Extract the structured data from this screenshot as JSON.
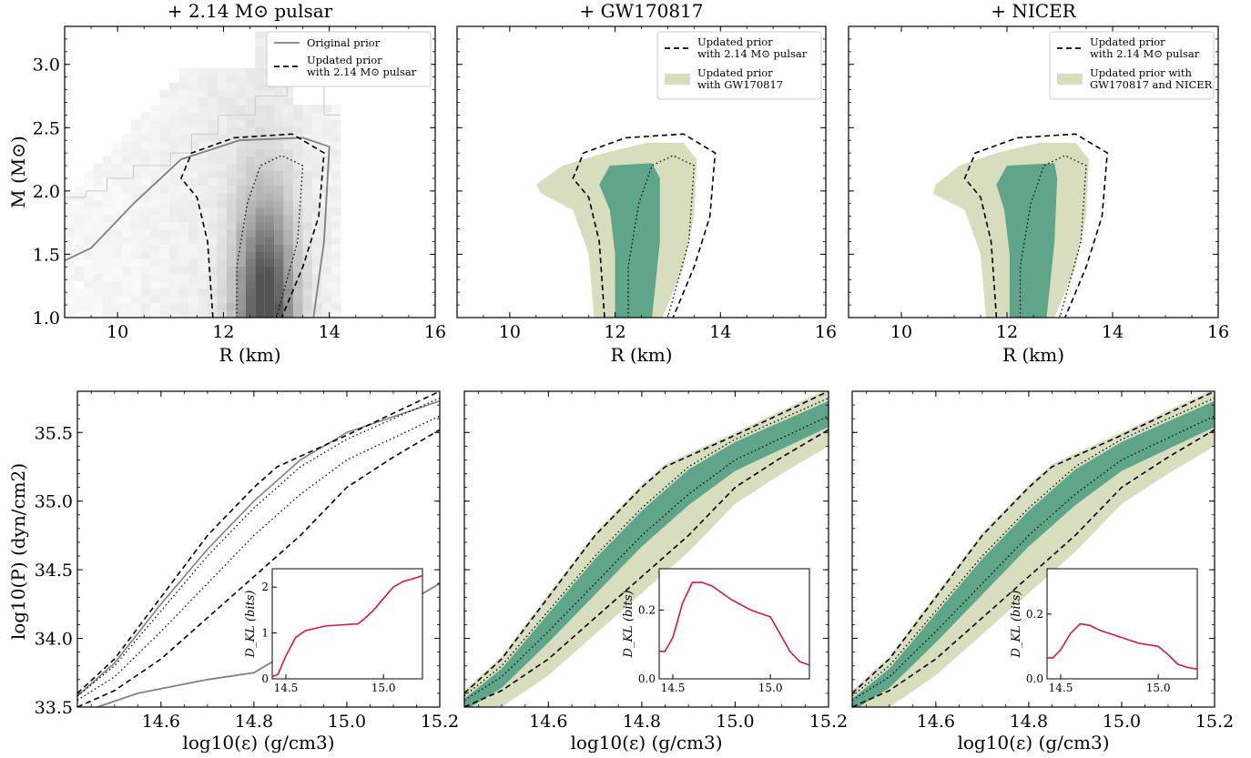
{
  "colors": {
    "broad": "#d7ddbd",
    "narrow": "#5fa58a",
    "prior_line": "#808080",
    "kl_line": "#d6163f",
    "heat_dark": "#3a3a3a"
  },
  "chart_data": [
    {
      "id": "mr-pulsar",
      "type": "contour",
      "title": "+ 2.14 M⊙ pulsar",
      "xlabel": "R (km)",
      "ylabel": "M (M⊙)",
      "xlim": [
        9,
        16
      ],
      "ylim": [
        1.0,
        3.3
      ],
      "xticks": [
        "10",
        "12",
        "14",
        "16"
      ],
      "yticks": [
        "1.0",
        "1.5",
        "2.0",
        "2.5",
        "3.0"
      ],
      "legend": [
        "Original prior",
        "Updated prior",
        "with 2.14 M⊙ pulsar"
      ],
      "prior_density": "grayscale 2D histogram of prior samples, densest near R≈12.5–13 km, M≈1.0–1.6",
      "prior_contour_90": [
        [
          9.0,
          1.45
        ],
        [
          9.5,
          1.55
        ],
        [
          10.3,
          1.9
        ],
        [
          11.2,
          2.25
        ],
        [
          12.3,
          2.4
        ],
        [
          13.5,
          2.42
        ],
        [
          14.0,
          2.35
        ],
        [
          13.9,
          1.6
        ],
        [
          13.7,
          1.0
        ]
      ],
      "updated_90": [
        [
          11.8,
          1.0
        ],
        [
          11.7,
          1.6
        ],
        [
          11.5,
          1.95
        ],
        [
          11.2,
          2.1
        ],
        [
          11.4,
          2.3
        ],
        [
          12.2,
          2.42
        ],
        [
          13.3,
          2.45
        ],
        [
          13.9,
          2.3
        ],
        [
          13.8,
          1.8
        ],
        [
          13.5,
          1.4
        ],
        [
          13.1,
          1.0
        ]
      ],
      "updated_50": [
        [
          12.25,
          1.0
        ],
        [
          12.25,
          1.4
        ],
        [
          12.45,
          1.9
        ],
        [
          12.7,
          2.2
        ],
        [
          13.1,
          2.28
        ],
        [
          13.5,
          2.2
        ],
        [
          13.4,
          1.6
        ],
        [
          13.0,
          1.0
        ]
      ]
    },
    {
      "id": "mr-gw",
      "type": "contour",
      "title": "+ GW170817",
      "xlabel": "R (km)",
      "xlim": [
        9,
        16
      ],
      "ylim": [
        1.0,
        3.3
      ],
      "xticks": [
        "10",
        "12",
        "14",
        "16"
      ],
      "legend": [
        "Updated prior",
        "with 2.14 M⊙ pulsar",
        "Updated prior",
        "with GW170817"
      ],
      "band_90": [
        [
          11.6,
          1.0
        ],
        [
          11.5,
          1.5
        ],
        [
          11.2,
          1.85
        ],
        [
          10.6,
          1.98
        ],
        [
          10.5,
          2.05
        ],
        [
          11.0,
          2.2
        ],
        [
          11.8,
          2.3
        ],
        [
          12.6,
          2.38
        ],
        [
          13.3,
          2.38
        ],
        [
          13.55,
          2.25
        ],
        [
          13.5,
          1.8
        ],
        [
          13.3,
          1.4
        ],
        [
          12.9,
          1.0
        ]
      ],
      "band_50": [
        [
          12.0,
          1.0
        ],
        [
          12.0,
          1.5
        ],
        [
          11.9,
          1.85
        ],
        [
          11.7,
          2.05
        ],
        [
          11.9,
          2.2
        ],
        [
          12.7,
          2.22
        ],
        [
          12.85,
          2.1
        ],
        [
          12.85,
          1.6
        ],
        [
          12.7,
          1.0
        ]
      ]
    },
    {
      "id": "mr-nicer",
      "type": "contour",
      "title": "+ NICER",
      "xlabel": "R (km)",
      "xlim": [
        9,
        16
      ],
      "ylim": [
        1.0,
        3.3
      ],
      "xticks": [
        "10",
        "12",
        "14",
        "16"
      ],
      "legend": [
        "Updated prior",
        "with 2.14 M⊙ pulsar",
        "Updated prior with",
        "GW170817 and NICER"
      ],
      "band_90": [
        [
          11.6,
          1.0
        ],
        [
          11.5,
          1.5
        ],
        [
          11.2,
          1.85
        ],
        [
          10.6,
          1.98
        ],
        [
          10.65,
          2.05
        ],
        [
          11.1,
          2.2
        ],
        [
          11.8,
          2.3
        ],
        [
          12.6,
          2.38
        ],
        [
          13.3,
          2.38
        ],
        [
          13.55,
          2.25
        ],
        [
          13.5,
          1.8
        ],
        [
          13.3,
          1.4
        ],
        [
          12.9,
          1.0
        ]
      ],
      "band_50": [
        [
          12.05,
          1.0
        ],
        [
          12.05,
          1.5
        ],
        [
          11.95,
          1.85
        ],
        [
          11.8,
          2.05
        ],
        [
          12.0,
          2.2
        ],
        [
          12.9,
          2.22
        ],
        [
          12.95,
          2.1
        ],
        [
          12.9,
          1.6
        ],
        [
          12.75,
          1.0
        ]
      ]
    },
    {
      "id": "eos-pulsar",
      "type": "line",
      "xlabel": "log10(ε) (g/cm3)",
      "ylabel": "log10(P) (dyn/cm2)",
      "xlim": [
        14.42,
        15.2
      ],
      "ylim": [
        33.5,
        35.8
      ],
      "xticks": [
        "14.6",
        "14.8",
        "15.0",
        "15.2"
      ],
      "yticks": [
        "33.5",
        "34.0",
        "34.5",
        "35.0",
        "35.5"
      ],
      "prior_line": [
        [
          14.42,
          33.45
        ],
        [
          14.55,
          33.6
        ],
        [
          14.7,
          33.7
        ],
        [
          14.8,
          33.75
        ],
        [
          14.9,
          33.95
        ],
        [
          15.1,
          34.2
        ],
        [
          15.2,
          34.4
        ]
      ],
      "upper_dashed": [
        [
          14.42,
          33.6
        ],
        [
          14.5,
          33.85
        ],
        [
          14.6,
          34.3
        ],
        [
          14.7,
          34.75
        ],
        [
          14.8,
          35.1
        ],
        [
          14.85,
          35.25
        ],
        [
          15.0,
          35.48
        ],
        [
          15.2,
          35.8
        ]
      ],
      "lower_dashed": [
        [
          14.42,
          33.5
        ],
        [
          14.5,
          33.62
        ],
        [
          14.6,
          33.85
        ],
        [
          14.7,
          34.15
        ],
        [
          14.8,
          34.45
        ],
        [
          14.9,
          34.75
        ],
        [
          15.0,
          35.1
        ],
        [
          15.1,
          35.32
        ],
        [
          15.2,
          35.52
        ]
      ],
      "upper_dotted": [
        [
          14.42,
          33.58
        ],
        [
          14.5,
          33.8
        ],
        [
          14.6,
          34.2
        ],
        [
          14.7,
          34.6
        ],
        [
          14.8,
          34.95
        ],
        [
          14.9,
          35.25
        ],
        [
          15.0,
          35.45
        ],
        [
          15.2,
          35.75
        ]
      ],
      "lower_dotted": [
        [
          14.42,
          33.55
        ],
        [
          14.5,
          33.72
        ],
        [
          14.6,
          34.05
        ],
        [
          14.7,
          34.4
        ],
        [
          14.8,
          34.75
        ],
        [
          14.9,
          35.05
        ],
        [
          15.0,
          35.3
        ],
        [
          15.2,
          35.62
        ]
      ],
      "solid_gray": [
        [
          14.42,
          33.58
        ],
        [
          14.5,
          33.82
        ],
        [
          14.6,
          34.25
        ],
        [
          14.7,
          34.65
        ],
        [
          14.8,
          35.0
        ],
        [
          14.9,
          35.3
        ],
        [
          15.0,
          35.5
        ],
        [
          15.2,
          35.73
        ]
      ],
      "inset": {
        "ylabel": "D_KL (bits)",
        "xticks": [
          "14.5",
          "15.0"
        ],
        "yticks": [
          "0",
          "1",
          "2"
        ],
        "ylim": [
          0,
          2.4
        ],
        "xlim": [
          14.43,
          15.2
        ],
        "x": [
          14.43,
          14.46,
          14.5,
          14.55,
          14.6,
          14.7,
          14.8,
          14.87,
          14.9,
          14.95,
          15.0,
          15.05,
          15.1,
          15.15,
          15.2
        ],
        "y": [
          0.05,
          0.1,
          0.5,
          0.9,
          1.05,
          1.15,
          1.18,
          1.2,
          1.3,
          1.5,
          1.75,
          2.0,
          2.12,
          2.18,
          2.25
        ]
      }
    },
    {
      "id": "eos-gw",
      "type": "band",
      "xlabel": "log10(ε) (g/cm3)",
      "xlim": [
        14.42,
        15.2
      ],
      "ylim": [
        33.5,
        35.8
      ],
      "xticks": [
        "14.6",
        "14.8",
        "15.0",
        "15.2"
      ],
      "inset": {
        "ylabel": "D_KL (bits)",
        "xticks": [
          "14.5",
          "15.0"
        ],
        "yticks": [
          "0.0",
          "0.2"
        ],
        "ylim": [
          0,
          0.32
        ],
        "xlim": [
          14.43,
          15.2
        ],
        "x": [
          14.43,
          14.46,
          14.5,
          14.55,
          14.6,
          14.65,
          14.7,
          14.8,
          14.9,
          14.95,
          15.0,
          15.05,
          15.1,
          15.15,
          15.2
        ],
        "y": [
          0.08,
          0.08,
          0.12,
          0.22,
          0.28,
          0.28,
          0.27,
          0.23,
          0.2,
          0.19,
          0.18,
          0.13,
          0.08,
          0.05,
          0.04
        ]
      }
    },
    {
      "id": "eos-nicer",
      "type": "band",
      "xlabel": "log10(ε) (g/cm3)",
      "xlim": [
        14.42,
        15.2
      ],
      "ylim": [
        33.5,
        35.8
      ],
      "xticks": [
        "14.6",
        "14.8",
        "15.0",
        "15.2"
      ],
      "inset": {
        "ylabel": "D_KL (bits)",
        "xticks": [
          "14.5",
          "15.0"
        ],
        "yticks": [
          "0.0",
          "0.2"
        ],
        "ylim": [
          0,
          0.34
        ],
        "xlim": [
          14.43,
          15.2
        ],
        "x": [
          14.43,
          14.46,
          14.5,
          14.55,
          14.6,
          14.65,
          14.7,
          14.8,
          14.9,
          14.95,
          15.0,
          15.05,
          15.1,
          15.15,
          15.2
        ],
        "y": [
          0.065,
          0.065,
          0.09,
          0.14,
          0.17,
          0.165,
          0.15,
          0.13,
          0.11,
          0.105,
          0.1,
          0.075,
          0.045,
          0.035,
          0.03
        ]
      }
    }
  ]
}
